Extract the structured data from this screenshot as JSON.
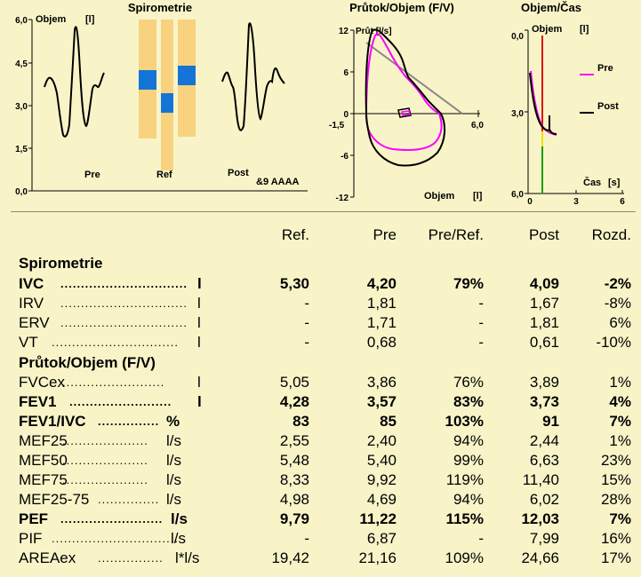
{
  "charts": {
    "spiro": {
      "title": "Spirometrie",
      "y_label": "Objem",
      "y_unit": "[l]",
      "y_ticks": [
        "6,0",
        "4,5",
        "3,0",
        "1,5",
        "0,0"
      ],
      "labels": {
        "pre": "Pre",
        "ref": "Ref",
        "post": "Post",
        "date": "&9 AAAA"
      }
    },
    "fv": {
      "title": "Průtok/Objem (F/V)",
      "y_label": "Průt [l/s]",
      "x_label": "Objem",
      "x_unit": "[l]",
      "y_ticks": [
        "12",
        "6",
        "0",
        "-6",
        "-12"
      ],
      "x_ticks": [
        "-1,5",
        "6,0"
      ]
    },
    "vt": {
      "title": "Objem/Čas",
      "y_label": "Objem",
      "y_unit": "[l]",
      "x_label": "Čas",
      "x_unit": "[s]",
      "y_ticks": [
        "0,0",
        "3,0",
        "6,0"
      ],
      "x_ticks": [
        "0",
        "3",
        "6"
      ],
      "legend": [
        {
          "name": "Pre",
          "color": "#ff00ff"
        },
        {
          "name": "Post",
          "color": "#000000"
        }
      ]
    }
  },
  "table": {
    "headers": {
      "ref": "Ref.",
      "pre": "Pre",
      "pre_ref": "Pre/Ref.",
      "post": "Post",
      "rozd": "Rozd."
    },
    "sections": [
      "Spirometrie",
      "Průtok/Objem (F/V)"
    ],
    "rows": [
      {
        "label": "IVC",
        "dots": "...............................",
        "unit": "l",
        "ref": "5,30",
        "pre": "4,20",
        "pre_ref": "79%",
        "post": "4,09",
        "rozd": "-2%",
        "bold": true
      },
      {
        "label": "IRV",
        "dots": "...............................",
        "unit": "l",
        "ref": "-",
        "pre": "1,81",
        "pre_ref": "-",
        "post": "1,67",
        "rozd": "-8%",
        "bold": false
      },
      {
        "label": "ERV",
        "dots": "...............................",
        "unit": "l",
        "ref": "-",
        "pre": "1,71",
        "pre_ref": "-",
        "post": "1,81",
        "rozd": "6%",
        "bold": false
      },
      {
        "label": "VT",
        "dots": "...............................",
        "unit": "l",
        "ref": "-",
        "pre": "0,68",
        "pre_ref": "-",
        "post": "0,61",
        "rozd": "-10%",
        "bold": false
      },
      {
        "label": "FVCex",
        "dots": ".........................",
        "unit": "l",
        "ref": "5,05",
        "pre": "3,86",
        "pre_ref": "76%",
        "post": "3,89",
        "rozd": "1%",
        "bold": false
      },
      {
        "label": "FEV1",
        "dots": ".........................",
        "unit": "l",
        "ref": "4,28",
        "pre": "3,57",
        "pre_ref": "83%",
        "post": "3,73",
        "rozd": "4%",
        "bold": true
      },
      {
        "label": "FEV1/IVC",
        "dots": "...............",
        "unit": "%",
        "ref": "83",
        "pre": "85",
        "pre_ref": "103%",
        "post": "91",
        "rozd": "7%",
        "bold": true
      },
      {
        "label": "MEF25",
        "dots": ".....................",
        "unit": "l/s",
        "ref": "2,55",
        "pre": "2,40",
        "pre_ref": "94%",
        "post": "2,44",
        "rozd": "1%",
        "bold": false
      },
      {
        "label": "MEF50",
        "dots": ".....................",
        "unit": "l/s",
        "ref": "5,48",
        "pre": "5,40",
        "pre_ref": "99%",
        "post": "6,63",
        "rozd": "23%",
        "bold": false
      },
      {
        "label": "MEF75",
        "dots": ".....................",
        "unit": "l/s",
        "ref": "8,33",
        "pre": "9,92",
        "pre_ref": "119%",
        "post": "11,40",
        "rozd": "15%",
        "bold": false
      },
      {
        "label": "MEF25-75",
        "dots": "...............",
        "unit": "l/s",
        "ref": "4,98",
        "pre": "4,69",
        "pre_ref": "94%",
        "post": "6,02",
        "rozd": "28%",
        "bold": false
      },
      {
        "label": "PEF",
        "dots": ".........................",
        "unit": "l/s",
        "ref": "9,79",
        "pre": "11,22",
        "pre_ref": "115%",
        "post": "12,03",
        "rozd": "7%",
        "bold": true
      },
      {
        "label": "PIF",
        "dots": "...............................",
        "unit": "l/s",
        "ref": "-",
        "pre": "6,87",
        "pre_ref": "-",
        "post": "7,99",
        "rozd": "16%",
        "bold": false
      },
      {
        "label": "AREAex",
        "dots": "................",
        "unit": "l*l/s",
        "ref": "19,42",
        "pre": "21,16",
        "pre_ref": "109%",
        "post": "24,66",
        "rozd": "17%",
        "bold": false
      }
    ]
  }
}
